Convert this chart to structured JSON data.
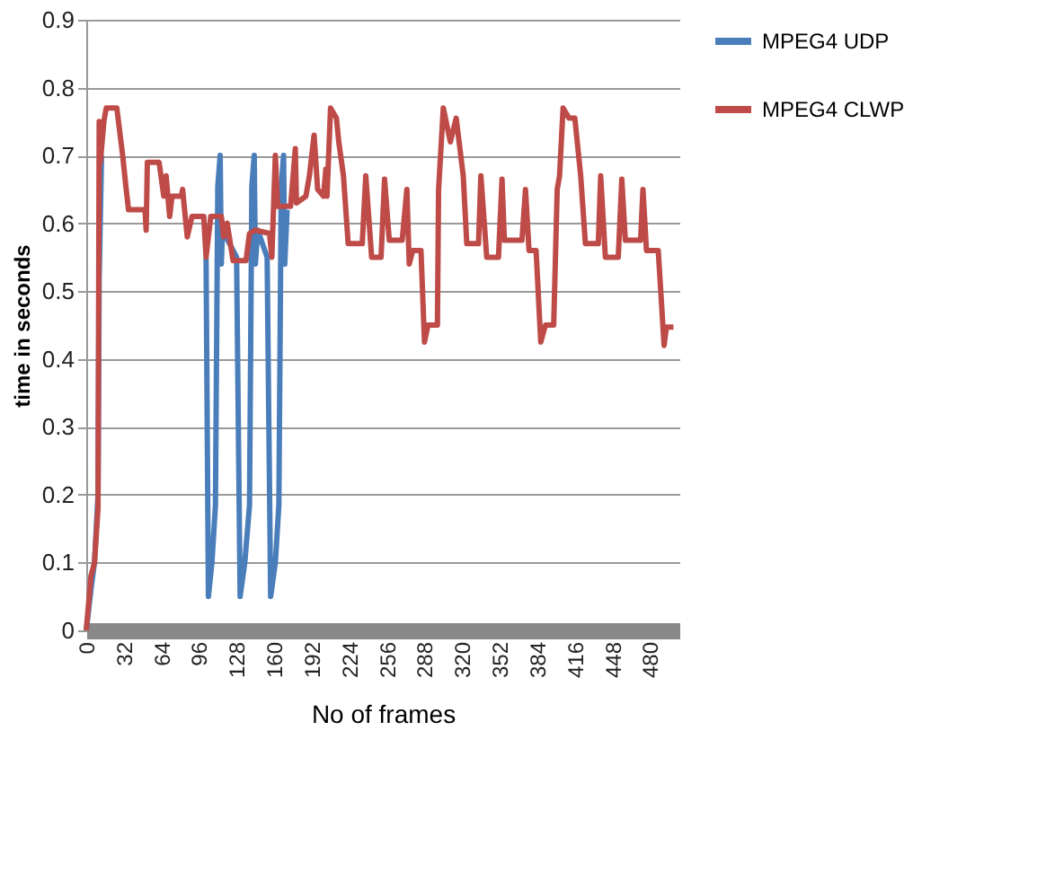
{
  "chart_data": {
    "type": "line",
    "xlabel": "No of frames",
    "ylabel": "time in seconds",
    "xlim": [
      0,
      505
    ],
    "xticks": [
      0,
      32,
      64,
      96,
      128,
      160,
      192,
      224,
      256,
      288,
      320,
      352,
      384,
      416,
      448,
      480
    ],
    "ylim": [
      0,
      0.9
    ],
    "yticks": [
      0,
      0.1,
      0.2,
      0.3,
      0.4,
      0.5,
      0.6,
      0.7,
      0.8,
      0.9
    ],
    "grid": "y",
    "legend": "right",
    "marker": "none",
    "line_style": "solid",
    "series": [
      {
        "name": "MPEG4 UDP",
        "color": "#4a7ebb",
        "x": [
          0,
          4,
          7,
          10,
          11,
          12,
          13,
          50,
          102,
          104,
          107,
          110,
          112,
          114,
          115,
          116,
          128,
          131,
          135,
          139,
          141,
          143,
          144,
          146,
          154,
          157,
          161,
          164,
          166,
          168,
          169,
          171
        ],
        "values": [
          0,
          0.06,
          0.1,
          0.2,
          0.52,
          0.61,
          0.7,
          null,
          0.55,
          0.05,
          0.1,
          0.185,
          0.655,
          0.7,
          0.54,
          0.59,
          0.55,
          0.05,
          0.1,
          0.185,
          0.655,
          0.7,
          0.54,
          0.59,
          0.55,
          0.05,
          0.1,
          0.185,
          0.655,
          0.7,
          0.54,
          0.62
        ]
      },
      {
        "name": "MPEG4 CLWP",
        "color": "#be4b48",
        "x": [
          0,
          4,
          7,
          10,
          11,
          12,
          15,
          17,
          26,
          31,
          34,
          36,
          47,
          50,
          51,
          52,
          62,
          66,
          68,
          71,
          73,
          81,
          82,
          86,
          90,
          100,
          102,
          106,
          115,
          117,
          120,
          125,
          136,
          139,
          144,
          156,
          158,
          161,
          163,
          174,
          178,
          179,
          187,
          190,
          194,
          197,
          202,
          204,
          205,
          208,
          213,
          215,
          219,
          223,
          235,
          238,
          243,
          251,
          254,
          258,
          269,
          273,
          275,
          278,
          285,
          288,
          291,
          299,
          300,
          304,
          310,
          315,
          321,
          324,
          334,
          336,
          341,
          351,
          354,
          356,
          371,
          374,
          377,
          383,
          387,
          391,
          398,
          401,
          403,
          406,
          411,
          416,
          421,
          425,
          436,
          438,
          442,
          453,
          456,
          459,
          472,
          474,
          477,
          487,
          489,
          492,
          494,
          500
        ],
        "values": [
          0,
          0.08,
          0.1,
          0.18,
          0.75,
          0.69,
          0.75,
          0.77,
          0.77,
          0.7,
          0.65,
          0.62,
          0.62,
          0.62,
          0.59,
          0.69,
          0.69,
          0.64,
          0.67,
          0.61,
          0.64,
          0.64,
          0.65,
          0.58,
          0.61,
          0.61,
          0.55,
          0.61,
          0.61,
          0.58,
          0.6,
          0.545,
          0.545,
          0.585,
          0.59,
          0.585,
          0.55,
          0.7,
          0.625,
          0.625,
          0.71,
          0.63,
          0.64,
          0.67,
          0.73,
          0.65,
          0.64,
          0.68,
          0.64,
          0.77,
          0.755,
          0.72,
          0.67,
          0.57,
          0.57,
          0.67,
          0.55,
          0.55,
          0.665,
          0.575,
          0.575,
          0.65,
          0.54,
          0.56,
          0.56,
          0.425,
          0.45,
          0.45,
          0.65,
          0.77,
          0.72,
          0.755,
          0.67,
          0.57,
          0.57,
          0.67,
          0.55,
          0.55,
          0.665,
          0.575,
          0.575,
          0.65,
          0.56,
          0.56,
          0.425,
          0.45,
          0.45,
          0.65,
          0.67,
          0.77,
          0.755,
          0.755,
          0.67,
          0.57,
          0.57,
          0.67,
          0.55,
          0.55,
          0.665,
          0.575,
          0.575,
          0.65,
          0.56,
          0.56,
          0.505,
          0.42,
          0.447,
          0.447
        ]
      }
    ]
  }
}
